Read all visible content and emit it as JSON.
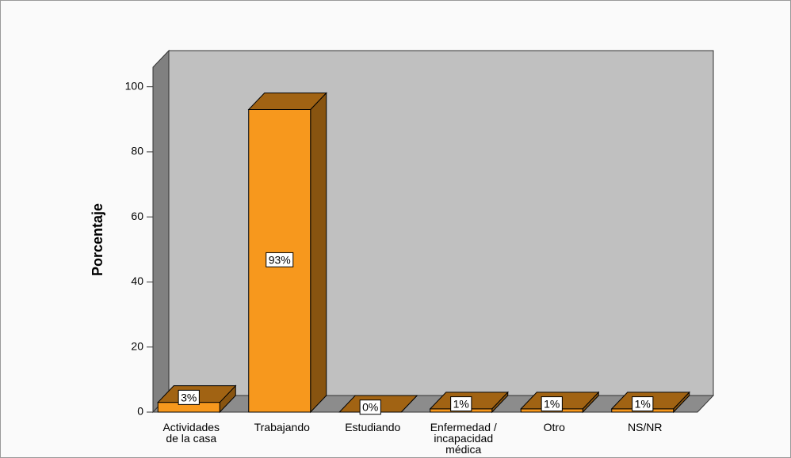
{
  "chart_data": {
    "type": "bar3d",
    "y_label": "Porcentaje",
    "categories": [
      "Actividades de la casa",
      "Trabajando",
      "Estudiando",
      "Enfermedad / incapacidad médica",
      "Otro",
      "NS/NR"
    ],
    "values": [
      3,
      93,
      0,
      1,
      1,
      1
    ],
    "value_labels": [
      "3%",
      "93%",
      "0%",
      "1%",
      "1%",
      "1%"
    ],
    "color": "#f7981d",
    "ylim": [
      0,
      106
    ],
    "yticks": [
      0,
      20,
      40,
      60,
      80,
      100
    ]
  }
}
